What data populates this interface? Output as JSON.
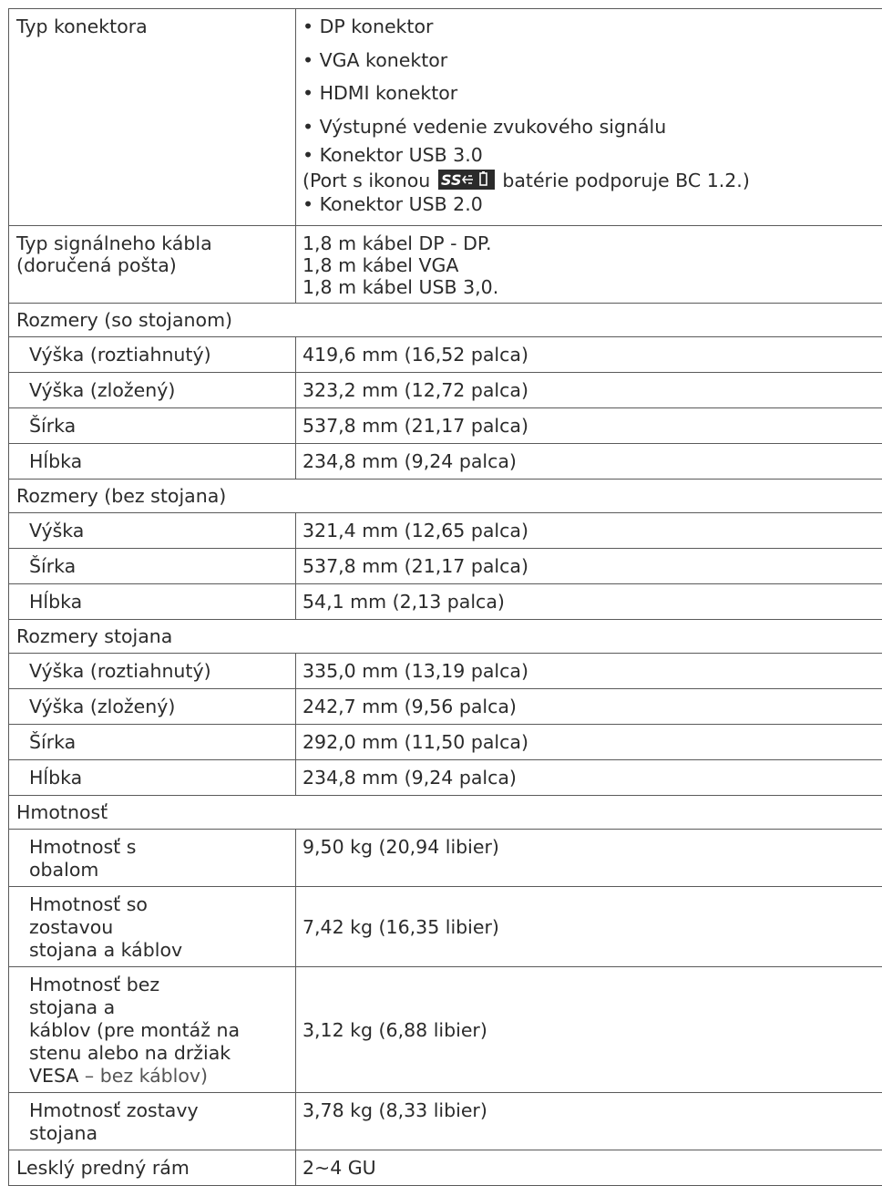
{
  "connector": {
    "label": "Typ konektora",
    "items": [
      "• DP konektor",
      "• VGA konektor",
      "• HDMI konektor",
      "• Výstupné vedenie zvukového signálu",
      "• Konektor USB 3.0"
    ],
    "usb_note_before": "(Port s ikonou",
    "usb_note_after": "batérie podporuje BC 1.2.)",
    "last_item": "• Konektor USB 2.0",
    "icon": "usb-superspeed-battery-icon"
  },
  "cable": {
    "label_line1": "Typ signálneho kábla",
    "label_line2": "(doručená pošta)",
    "values": [
      "1,8 m kábel DP - DP.",
      "1,8 m kábel VGA",
      "1,8 m kábel USB 3,0."
    ]
  },
  "dims_with_stand": {
    "heading": "Rozmery (so stojanom)",
    "rows": [
      {
        "label": "Výška (roztiahnutý)",
        "value": "419,6 mm (16,52 palca)"
      },
      {
        "label": "Výška (zložený)",
        "value": "323,2 mm (12,72 palca)"
      },
      {
        "label": "Šírka",
        "value": "537,8 mm (21,17 palca)"
      },
      {
        "label": "Hĺbka",
        "value": "234,8 mm (9,24 palca)"
      }
    ]
  },
  "dims_without_stand": {
    "heading": "Rozmery (bez stojana)",
    "rows": [
      {
        "label": "Výška",
        "value": "321,4 mm (12,65 palca)"
      },
      {
        "label": "Šírka",
        "value": "537,8 mm (21,17 palca)"
      },
      {
        "label": "Hĺbka",
        "value": "54,1 mm (2,13 palca)"
      }
    ]
  },
  "stand_dims": {
    "heading": "Rozmery stojana",
    "rows": [
      {
        "label": "Výška (roztiahnutý)",
        "value": "335,0 mm (13,19 palca)"
      },
      {
        "label": "Výška (zložený)",
        "value": "242,7 mm (9,56 palca)"
      },
      {
        "label": "Šírka",
        "value": "292,0 mm (11,50 palca)"
      },
      {
        "label": "Hĺbka",
        "value": "234,8 mm (9,24 palca)"
      }
    ]
  },
  "weight": {
    "heading": "Hmotnosť",
    "with_package": {
      "label_lines": [
        "Hmotnosť s",
        "obalom"
      ],
      "value": "9,50 kg (20,94 libier)"
    },
    "with_stand_cables": {
      "label_lines": [
        "Hmotnosť so",
        "zostavou",
        "stojana a káblov"
      ],
      "value": "7,42 kg (16,35 libier)"
    },
    "without_stand": {
      "label_lines": [
        "Hmotnosť bez",
        "stojana a",
        "káblov (pre montáž na",
        "stenu alebo na držiak"
      ],
      "label_last_a": "VESA",
      "label_last_b": " – bez káblov)",
      "value": "3,12 kg (6,88 libier)"
    },
    "stand_assembly": {
      "label_lines": [
        "Hmotnosť zostavy",
        "stojana"
      ],
      "value": "3,78 kg (8,33 libier)"
    }
  },
  "gloss": {
    "label": "Lesklý predný rám",
    "value": "2~4 GU"
  }
}
